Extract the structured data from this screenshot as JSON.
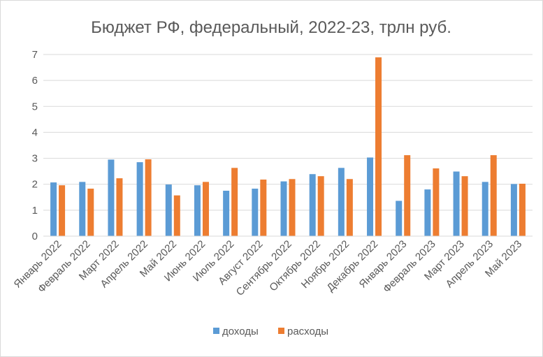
{
  "chart_data": {
    "type": "bar",
    "title": "Бюджет РФ, федеральный, 2022-23, трлн руб.",
    "xlabel": "",
    "ylabel": "",
    "ylim": [
      0,
      7
    ],
    "yticks": [
      "0",
      "1",
      "2",
      "3",
      "4",
      "5",
      "6",
      "7"
    ],
    "grid": true,
    "legend_position": "bottom",
    "categories": [
      "Январь 2022",
      "Февраль 2022",
      "Март 2022",
      "Апрель 2022",
      "Май 2022",
      "Июнь 2022",
      "Июль 2022",
      "Август 2022",
      "Сентябрь 2022",
      "Октябрь 2022",
      "Ноябрь 2022",
      "Декабрь 2022",
      "Январь 2023",
      "Февраль 2023",
      "Март 2023",
      "Апрель 2023",
      "Май 2023"
    ],
    "series": [
      {
        "name": "доходы",
        "color": "#5b9bd5",
        "values": [
          2.07,
          2.09,
          2.95,
          2.85,
          1.99,
          1.96,
          1.75,
          1.83,
          2.11,
          2.39,
          2.63,
          3.03,
          1.36,
          1.8,
          2.49,
          2.09,
          2.01
        ]
      },
      {
        "name": "расходы",
        "color": "#ed7d31",
        "values": [
          1.96,
          1.83,
          2.23,
          2.96,
          1.57,
          2.09,
          2.63,
          2.18,
          2.2,
          2.31,
          2.2,
          6.89,
          3.12,
          2.61,
          2.31,
          3.12,
          2.02
        ]
      }
    ]
  }
}
